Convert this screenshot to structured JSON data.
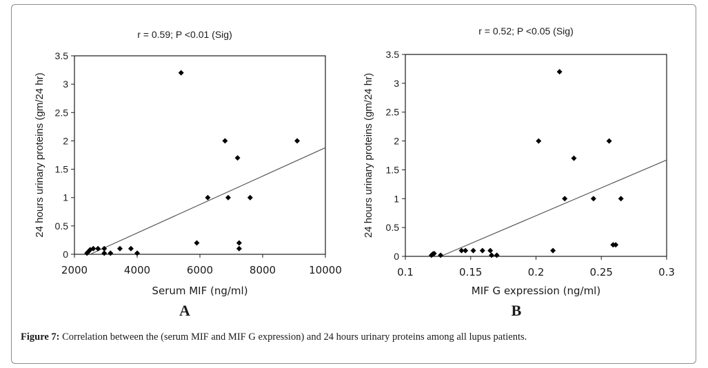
{
  "caption": {
    "label": "Figure 7:",
    "text": " Correlation between the (serum MIF and MIF G expression) and 24 hours urinary proteins among all lupus patients."
  },
  "chart_data": [
    {
      "type": "scatter",
      "panel_letter": "A",
      "title": "r = 0.59; P <0.01 (Sig)",
      "xlabel": "Serum MIF (ng/ml)",
      "ylabel": "24 hours urinary proteins (gm/24 hr)",
      "xlim": [
        2000,
        10000
      ],
      "ylim": [
        0,
        3.5
      ],
      "xticks": [
        2000,
        4000,
        6000,
        8000,
        10000
      ],
      "xtick_labels": [
        "2000",
        "4000",
        "6000",
        "8000",
        "10000"
      ],
      "yticks": [
        0,
        0.5,
        1,
        1.5,
        2,
        2.5,
        3,
        3.5
      ],
      "ytick_labels": [
        "0",
        "0.5",
        "1",
        "1.5",
        "2",
        "2.5",
        "3",
        "3.5"
      ],
      "grid": false,
      "marker": "diamond",
      "points": [
        [
          5400,
          3.2
        ],
        [
          6800,
          2.0
        ],
        [
          9100,
          2.0
        ],
        [
          7200,
          1.7
        ],
        [
          6250,
          1.0
        ],
        [
          6900,
          1.0
        ],
        [
          7600,
          1.0
        ],
        [
          5900,
          0.2
        ],
        [
          7250,
          0.2
        ],
        [
          7250,
          0.1
        ],
        [
          2400,
          0.02
        ],
        [
          2450,
          0.05
        ],
        [
          2500,
          0.08
        ],
        [
          2600,
          0.1
        ],
        [
          2750,
          0.1
        ],
        [
          2950,
          0.1
        ],
        [
          2950,
          0.02
        ],
        [
          3150,
          0.02
        ],
        [
          3450,
          0.1
        ],
        [
          3800,
          0.1
        ],
        [
          4000,
          0.02
        ]
      ],
      "trendline": [
        [
          2500,
          0.0
        ],
        [
          10000,
          1.88
        ]
      ]
    },
    {
      "type": "scatter",
      "panel_letter": "B",
      "title": "r = 0.52; P <0.05 (Sig)",
      "xlabel": "MIF G expression (ng/ml)",
      "ylabel": "24 hours urinary proteins (gm/24 hr)",
      "xlim": [
        0.1,
        0.3
      ],
      "ylim": [
        0,
        3.5
      ],
      "xticks": [
        0.1,
        0.15,
        0.2,
        0.25,
        0.3
      ],
      "xtick_labels": [
        "0.1",
        "0.15",
        "0.2",
        "0.25",
        "0.3"
      ],
      "yticks": [
        0,
        0.5,
        1,
        1.5,
        2,
        2.5,
        3,
        3.5
      ],
      "ytick_labels": [
        "0",
        "0.5",
        "1",
        "1.5",
        "2",
        "2.5",
        "3",
        "3.5"
      ],
      "grid": false,
      "marker": "diamond",
      "points": [
        [
          0.218,
          3.2
        ],
        [
          0.202,
          2.0
        ],
        [
          0.256,
          2.0
        ],
        [
          0.229,
          1.7
        ],
        [
          0.222,
          1.0
        ],
        [
          0.244,
          1.0
        ],
        [
          0.265,
          1.0
        ],
        [
          0.259,
          0.2
        ],
        [
          0.261,
          0.2
        ],
        [
          0.213,
          0.1
        ],
        [
          0.12,
          0.02
        ],
        [
          0.121,
          0.04
        ],
        [
          0.122,
          0.05
        ],
        [
          0.127,
          0.02
        ],
        [
          0.143,
          0.1
        ],
        [
          0.146,
          0.1
        ],
        [
          0.152,
          0.1
        ],
        [
          0.159,
          0.1
        ],
        [
          0.165,
          0.1
        ],
        [
          0.166,
          0.02
        ],
        [
          0.17,
          0.02
        ]
      ],
      "trendline": [
        [
          0.127,
          0.0
        ],
        [
          0.3,
          1.67
        ]
      ]
    }
  ]
}
